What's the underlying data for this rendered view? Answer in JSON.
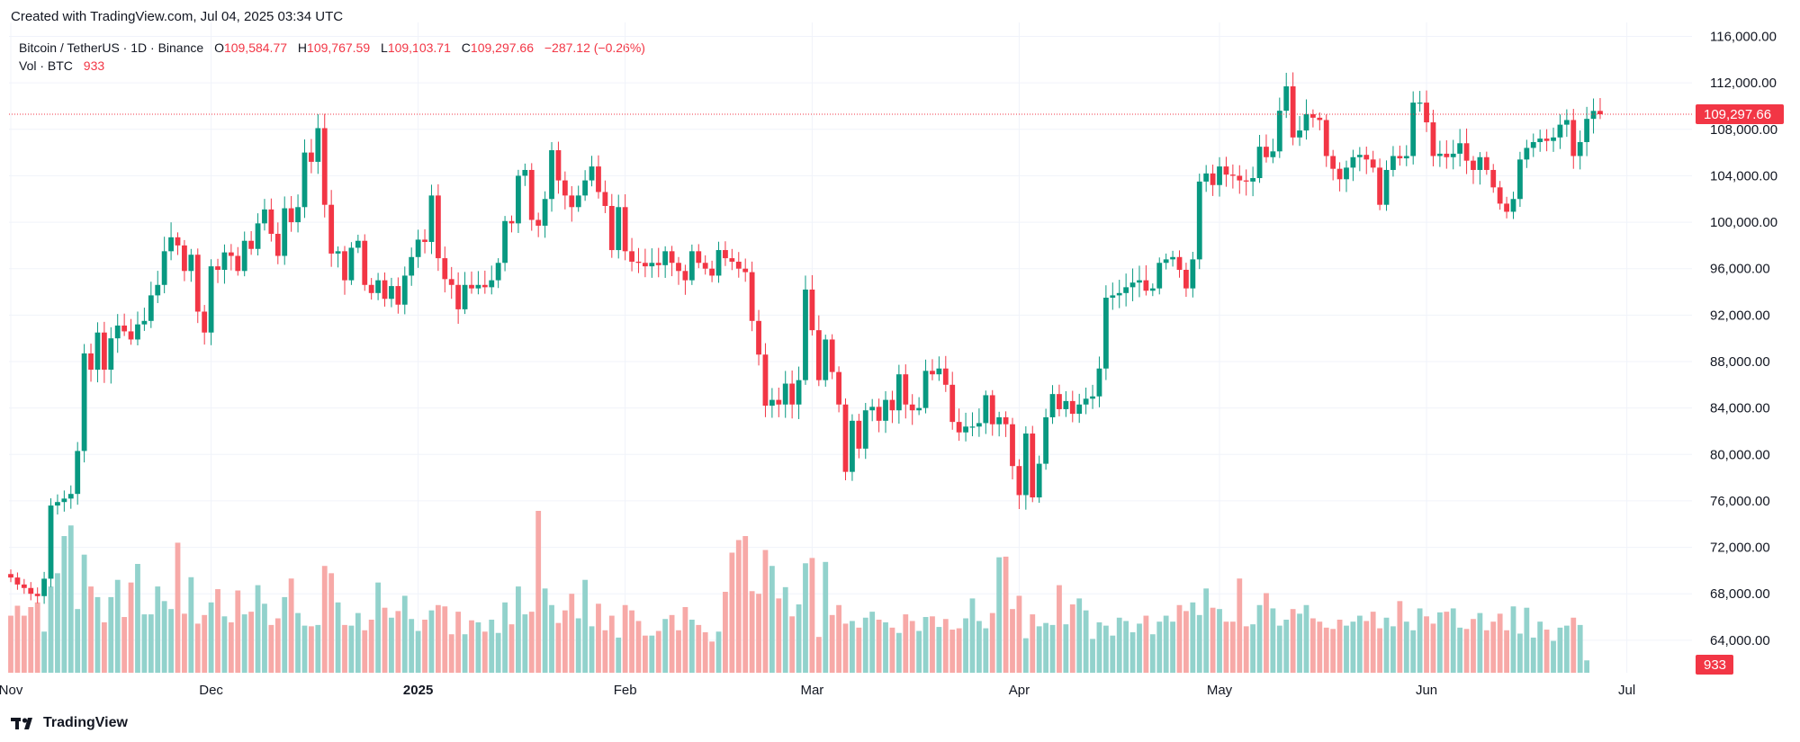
{
  "header": {
    "created_text": "Created with TradingView.com, Jul 04, 2025 03:34 UTC"
  },
  "legend": {
    "symbol": "Bitcoin / TetherUS · 1D · Binance",
    "o_label": "O",
    "o_value": "109,584.77",
    "h_label": "H",
    "h_value": "109,767.59",
    "l_label": "L",
    "l_value": "109,103.71",
    "c_label": "C",
    "c_value": "109,297.66",
    "change": "−287.12 (−0.26%)",
    "vol_label": "Vol · BTC",
    "vol_value": "933"
  },
  "footer": {
    "brand": "TradingView"
  },
  "colors": {
    "up": "#089981",
    "down": "#f23645",
    "vol_up": "#92d2cc",
    "vol_down": "#f7a9a7",
    "grid": "#f0f3fa"
  },
  "chart_data": {
    "type": "candlestick",
    "title": "Bitcoin / TetherUS · 1D · Binance",
    "price_axis": {
      "ylim": [
        61200,
        117200
      ],
      "ticks": [
        116000,
        112000,
        108000,
        104000,
        100000,
        96000,
        92000,
        88000,
        84000,
        80000,
        76000,
        72000,
        68000,
        64000
      ],
      "tick_labels": [
        "116,000.00",
        "112,000.00",
        "108,000.00",
        "104,000.00",
        "100,000.00",
        "96,000.00",
        "92,000.00",
        "88,000.00",
        "84,000.00",
        "80,000.00",
        "76,000.00",
        "72,000.00",
        "68,000.00",
        "64,000.00"
      ]
    },
    "time_axis": {
      "labels": [
        {
          "text": "Nov",
          "day": 0,
          "bold": false
        },
        {
          "text": "Dec",
          "day": 30,
          "bold": false
        },
        {
          "text": "2025",
          "day": 61,
          "bold": true
        },
        {
          "text": "Feb",
          "day": 92,
          "bold": false
        },
        {
          "text": "Mar",
          "day": 120,
          "bold": false
        },
        {
          "text": "Apr",
          "day": 151,
          "bold": false
        },
        {
          "text": "May",
          "day": 181,
          "bold": false
        },
        {
          "text": "Jun",
          "day": 212,
          "bold": false
        },
        {
          "text": "Jul",
          "day": 242,
          "bold": false
        }
      ]
    },
    "last_price": 109297.66,
    "last_price_label": "109,297.66",
    "last_volume_label": "933",
    "closes": [
      69400,
      68800,
      68500,
      68000,
      67800,
      69300,
      75600,
      75900,
      76200,
      76600,
      80300,
      88700,
      87300,
      90500,
      87300,
      90000,
      91100,
      90600,
      89900,
      91200,
      91500,
      93700,
      94600,
      97500,
      98700,
      98000,
      95800,
      97200,
      92300,
      90500,
      96200,
      95900,
      97400,
      97100,
      95800,
      98400,
      97700,
      99900,
      101100,
      99000,
      97100,
      101200,
      100000,
      101300,
      106000,
      105200,
      108100,
      101500,
      97300,
      97500,
      95000,
      97800,
      98400,
      94600,
      93900,
      95000,
      93400,
      94500,
      92900,
      95400,
      97000,
      98500,
      98300,
      102300,
      96900,
      95100,
      94600,
      92500,
      94600,
      94300,
      94600,
      94400,
      95000,
      96500,
      100100,
      99900,
      104000,
      104500,
      100200,
      99700,
      102000,
      106200,
      103600,
      102300,
      101300,
      102300,
      103600,
      104800,
      102600,
      101400,
      97600,
      101300,
      97500,
      96600,
      96500,
      96200,
      96500,
      96300,
      97500,
      96500,
      95800,
      95000,
      97500,
      96500,
      96000,
      95400,
      97600,
      96900,
      96600,
      96000,
      95700,
      91500,
      88600,
      84200,
      84700,
      84300,
      86100,
      84300,
      86400,
      94200,
      90700,
      86400,
      89900,
      87100,
      84300,
      78500,
      82900,
      80500,
      83800,
      84100,
      82900,
      84700,
      83800,
      86900,
      84300,
      83800,
      84000,
      87200,
      86900,
      87400,
      86000,
      82800,
      81900,
      82400,
      82400,
      82700,
      85100,
      82600,
      83200,
      82600,
      79000,
      76500,
      81800,
      76300,
      79200,
      83200,
      85200,
      83900,
      84600,
      83500,
      84300,
      84800,
      85000,
      87400,
      93500,
      93700,
      93900,
      94400,
      94800,
      95000,
      94100,
      94300,
      96500,
      96800,
      97000,
      95900,
      94300,
      96800,
      103500,
      104200,
      103200,
      104800,
      104100,
      104000,
      103600,
      103500,
      103800,
      106500,
      105600,
      106100,
      109600,
      111700,
      107300,
      107900,
      109300,
      109000,
      108800,
      105700,
      104600,
      103700,
      104700,
      105600,
      105800,
      105400,
      104700,
      101500,
      104500,
      105700,
      105500,
      105700,
      110300,
      110300,
      108600,
      105700,
      105900,
      105600,
      105900,
      106800,
      105300,
      104500,
      105600,
      104500,
      103000,
      101600,
      100900,
      102000,
      105400,
      106400,
      106900,
      107200,
      107000,
      107300,
      108400,
      108800,
      105700,
      106900,
      108900,
      109584.77,
      109297.66
    ],
    "volumes": [
      4300,
      5050,
      4300,
      4950,
      5300,
      3100,
      6500,
      7500,
      10300,
      11100,
      4800,
      8900,
      6500,
      5700,
      3800,
      5700,
      7000,
      4200,
      6800,
      8200,
      4400,
      4400,
      6500,
      5400,
      4800,
      9800,
      4450,
      7200,
      3700,
      4350,
      5300,
      6300,
      4250,
      3800,
      6200,
      4400,
      4600,
      6600,
      5200,
      3600,
      4100,
      5700,
      7100,
      4500,
      3550,
      3500,
      3600,
      8050,
      7500,
      5300,
      3600,
      3550,
      4500,
      3200,
      4000,
      6800,
      4900,
      4150,
      4650,
      5800,
      4050,
      3150,
      4000,
      4700,
      5100,
      5000,
      2900,
      4600,
      2900,
      3950,
      3800,
      3100,
      4000,
      3000,
      5300,
      3650,
      6500,
      4400,
      4600,
      12200,
      6350,
      5100,
      3750,
      4700,
      5950,
      4100,
      7000,
      3500,
      5200,
      3200,
      4300,
      2650,
      5100,
      4700,
      3900,
      2800,
      2800,
      3150,
      4050,
      4350,
      3200,
      4950,
      4000,
      3600,
      3050,
      2350,
      3100,
      6100,
      9050,
      10000,
      10300,
      6150,
      5950,
      9250,
      8050,
      5600,
      6450,
      4250,
      5150,
      8250,
      8650,
      2700,
      8350,
      4350,
      5100,
      3700,
      3900,
      3400,
      4150,
      4600,
      4000,
      3800,
      3400,
      3000,
      4400,
      3900,
      3150,
      4200,
      4250,
      3450,
      4050,
      3250,
      3350,
      4100,
      5600,
      3900,
      3350,
      4500,
      8700,
      8750,
      4800,
      5800,
      2600,
      4400,
      3500,
      3750,
      3600,
      6600,
      3650,
      5150,
      5600,
      4700,
      2550,
      3800,
      3550,
      2800,
      4150,
      3900,
      3050,
      3700,
      4300,
      2900,
      3850,
      4300,
      3850,
      5100,
      4650,
      5300,
      4350,
      6350,
      4900,
      4800,
      3850,
      3850,
      7100,
      3500,
      3650,
      5100,
      6000,
      4850,
      3550,
      4000,
      4800,
      4450,
      5100,
      4100,
      3850,
      3400,
      3300,
      4000,
      3550,
      3850,
      4300,
      3900,
      4600,
      3350,
      4150,
      3500,
      5400,
      3850,
      3200,
      4850,
      4250,
      3700,
      4550,
      4600,
      4850,
      3400,
      3300,
      4050,
      4500,
      3200,
      3850,
      4450,
      3200,
      5000,
      2950,
      4900,
      2650,
      3850,
      3250,
      2400,
      3400,
      3550,
      4150,
      3600,
      933
    ]
  }
}
